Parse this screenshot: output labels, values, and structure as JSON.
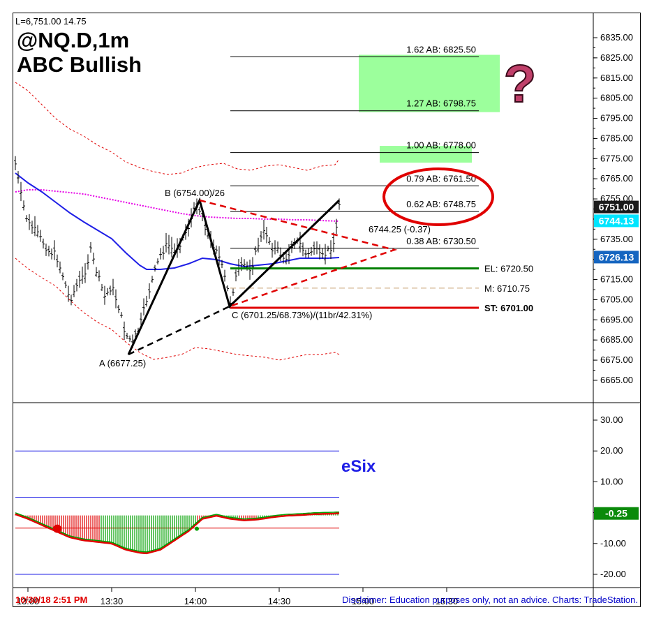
{
  "header": {
    "quote_line": "L=6,751.00  14.75",
    "symbol": "@NQ.D,1m",
    "pattern": "ABC Bullish",
    "timestamp": "10/30/18 2:51 PM",
    "disclaimer": "Disclaimer: Education purposes only, not an advice.  Charts: TradeStation."
  },
  "chart_data": [
    {
      "type": "candlestick",
      "y_axis_ticks": [
        "6835.00",
        "6825.00",
        "6815.00",
        "6805.00",
        "6795.00",
        "6785.00",
        "6775.00",
        "6765.00",
        "6755.00",
        "6745.00",
        "6735.00",
        "6725.00",
        "6715.00",
        "6705.00",
        "6695.00",
        "6685.00",
        "6675.00",
        "6665.00"
      ],
      "ylim": [
        6660,
        6840
      ],
      "x_axis_ticks": [
        "13:00",
        "13:30",
        "14:00",
        "14:30",
        "15:00",
        "15:30"
      ],
      "price_badges": [
        {
          "label": "6751.00",
          "value": 6751.0,
          "color": "#1a1a1a"
        },
        {
          "label": "6744.13",
          "value": 6744.13,
          "color": "#00e5ff"
        },
        {
          "label": "6726.13",
          "value": 6726.13,
          "color": "#1565c0"
        }
      ],
      "pattern_points": [
        {
          "name": "A",
          "label": "A (6677.25)",
          "value": 6677.25
        },
        {
          "name": "B",
          "label": "B (6754.00)/26",
          "value": 6754.0
        },
        {
          "name": "C",
          "label": "C (6701.25/68.73%)/(11br/42.31%)",
          "value": 6701.25
        }
      ],
      "fib_levels": [
        {
          "label": "1.62 AB: 6825.50",
          "value": 6825.5
        },
        {
          "label": "1.27 AB: 6798.75",
          "value": 6798.75
        },
        {
          "label": "1.00 AB: 6778.00",
          "value": 6778.0
        },
        {
          "label": "0.79 AB: 6761.50",
          "value": 6761.5
        },
        {
          "label": "0.62 AB: 6748.75",
          "value": 6748.75
        },
        {
          "label": "0.38 AB: 6730.50",
          "value": 6730.5
        }
      ],
      "trade_levels": [
        {
          "label": "EL: 6720.50",
          "value": 6720.5,
          "color": "#008000"
        },
        {
          "label": "M: 6710.75",
          "value": 6710.75,
          "color": "#c8a070"
        },
        {
          "label": "ST: 6701.00",
          "value": 6701.0,
          "color": "#e00000"
        }
      ],
      "annotation": "6744.25 (-0.37)",
      "question_mark": "?"
    },
    {
      "type": "histogram",
      "name": "eSix",
      "y_axis_ticks": [
        "30.00",
        "20.00",
        "10.00",
        "0.00",
        "-10.00",
        "-20.00"
      ],
      "ylim": [
        -25,
        35
      ],
      "guide_levels": [
        20,
        5,
        -5,
        -20
      ],
      "current_value_label": "-0.25",
      "current_value": -0.25
    }
  ]
}
